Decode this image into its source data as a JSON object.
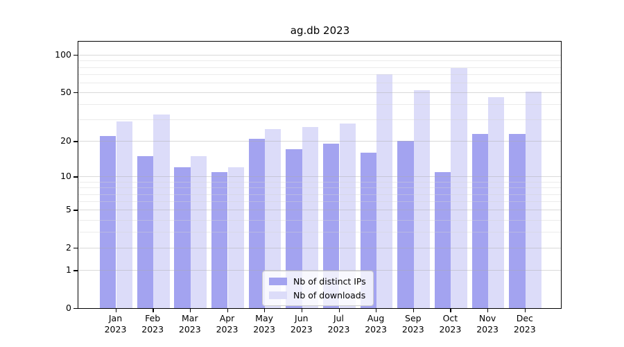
{
  "chart_data": {
    "type": "bar",
    "title": "ag.db 2023",
    "y_scale": "log1p",
    "categories": [
      "Jan",
      "Feb",
      "Mar",
      "Apr",
      "May",
      "Jun",
      "Jul",
      "Aug",
      "Sep",
      "Oct",
      "Nov",
      "Dec"
    ],
    "category_year": "2023",
    "series": [
      {
        "name": "Nb of distinct IPs",
        "color": "#a3a3f0",
        "values": [
          22,
          15,
          12,
          11,
          21,
          17,
          19,
          16,
          20,
          11,
          23,
          23
        ]
      },
      {
        "name": "Nb of downloads",
        "color": "#dcdcf9",
        "values": [
          29,
          33,
          15,
          12,
          25,
          26,
          28,
          70,
          52,
          78,
          46,
          51
        ]
      }
    ],
    "y_major_ticks": [
      0,
      1,
      2,
      5,
      10,
      20,
      50,
      100
    ],
    "y_minor_gridlines": [
      3,
      4,
      6,
      7,
      8,
      9,
      30,
      40,
      60,
      70,
      80,
      90
    ],
    "ylim": [
      0,
      130
    ],
    "grid": "on",
    "legend_position": "lower-center"
  },
  "colors": {
    "major_grid": "#c8c8c8",
    "minor_grid": "#e6e6e6",
    "spine": "#000000",
    "legend_border": "#cccccc",
    "legend_background": "#ffffff",
    "text": "#000000"
  }
}
